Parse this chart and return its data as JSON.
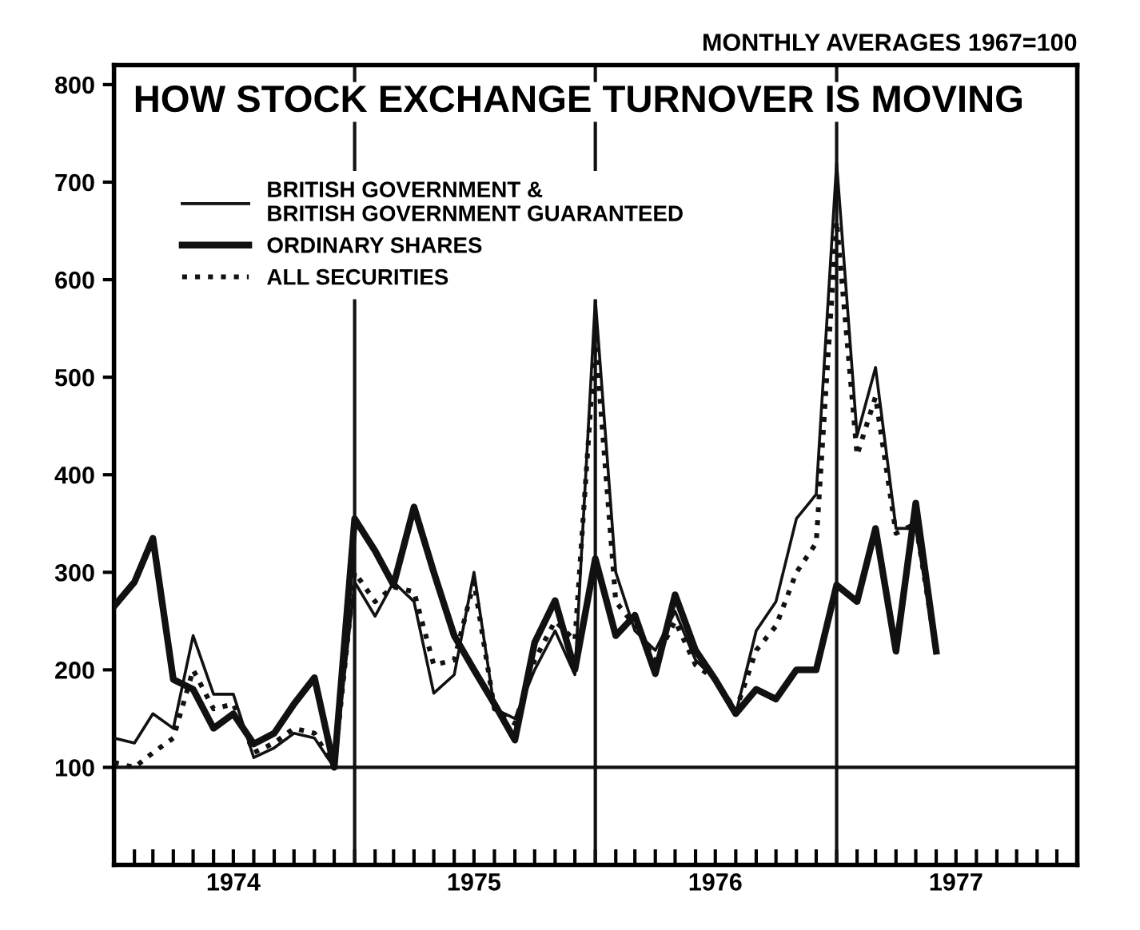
{
  "chart_data": {
    "type": "line",
    "title": "HOW STOCK EXCHANGE TURNOVER IS MOVING",
    "annotations": [
      "MONTHLY AVERAGES 1967=100"
    ],
    "x": [
      "1974-01",
      "1974-02",
      "1974-03",
      "1974-04",
      "1974-05",
      "1974-06",
      "1974-07",
      "1974-08",
      "1974-09",
      "1974-10",
      "1974-11",
      "1974-12",
      "1975-01",
      "1975-02",
      "1975-03",
      "1975-04",
      "1975-05",
      "1975-06",
      "1975-07",
      "1975-08",
      "1975-09",
      "1975-10",
      "1975-11",
      "1975-12",
      "1976-01",
      "1976-02",
      "1976-03",
      "1976-04",
      "1976-05",
      "1976-06",
      "1976-07",
      "1976-08",
      "1976-09",
      "1976-10",
      "1976-11",
      "1976-12",
      "1977-01",
      "1977-02",
      "1977-03",
      "1977-04",
      "1977-05",
      "1977-06"
    ],
    "series": [
      {
        "name": "BRITISH GOVERNMENT &\nBRITISH GOVERNMENT GUARANTEED",
        "color": "#111111",
        "line_style": "solid",
        "values": [
          130,
          125,
          155,
          140,
          235,
          175,
          175,
          110,
          120,
          135,
          130,
          100,
          290,
          255,
          290,
          270,
          176,
          195,
          300,
          160,
          150,
          200,
          240,
          195,
          580,
          300,
          240,
          220,
          260,
          210,
          190,
          155,
          240,
          270,
          355,
          380,
          720,
          440,
          510,
          345,
          345,
          220
        ]
      },
      {
        "name": "ORDINARY SHARES",
        "color": "#111111",
        "line_style": "solid",
        "values": [
          265,
          290,
          335,
          190,
          180,
          140,
          155,
          124,
          135,
          165,
          192,
          100,
          355,
          322,
          287,
          367,
          300,
          235,
          200,
          165,
          128,
          228,
          271,
          200,
          314,
          235,
          256,
          196,
          277,
          220,
          190,
          155,
          180,
          170,
          200,
          200,
          287,
          270,
          345,
          219,
          371,
          219
        ]
      },
      {
        "name": "ALL SECURITIES",
        "color": "#111111",
        "line_style": "dotted",
        "values": [
          105,
          100,
          115,
          130,
          200,
          160,
          165,
          115,
          125,
          140,
          135,
          100,
          300,
          270,
          285,
          280,
          205,
          210,
          290,
          160,
          145,
          210,
          250,
          230,
          540,
          270,
          245,
          210,
          250,
          205,
          190,
          158,
          220,
          245,
          300,
          330,
          660,
          420,
          480,
          340,
          350,
          219
        ]
      }
    ],
    "xlim": [
      "1974-01",
      "1978-01"
    ],
    "xticks": [
      {
        "value": "1974-01",
        "label": null
      },
      {
        "value": "1974-02",
        "label": null
      },
      {
        "value": "1974-03",
        "label": null
      },
      {
        "value": "1974-04",
        "label": null
      },
      {
        "value": "1974-05",
        "label": null
      },
      {
        "value": "1974-06",
        "label": null
      },
      {
        "value": "1974-07",
        "label": "1974"
      },
      {
        "value": "1974-08",
        "label": null
      },
      {
        "value": "1974-09",
        "label": null
      },
      {
        "value": "1974-10",
        "label": null
      },
      {
        "value": "1974-11",
        "label": null
      },
      {
        "value": "1974-12",
        "label": null
      },
      {
        "value": "1975-01",
        "label": null
      },
      {
        "value": "1975-02",
        "label": null
      },
      {
        "value": "1975-03",
        "label": null
      },
      {
        "value": "1975-04",
        "label": null
      },
      {
        "value": "1975-05",
        "label": null
      },
      {
        "value": "1975-06",
        "label": null
      },
      {
        "value": "1975-07",
        "label": "1975"
      },
      {
        "value": "1975-08",
        "label": null
      },
      {
        "value": "1975-09",
        "label": null
      },
      {
        "value": "1975-10",
        "label": null
      },
      {
        "value": "1975-11",
        "label": null
      },
      {
        "value": "1975-12",
        "label": null
      },
      {
        "value": "1976-01",
        "label": null
      },
      {
        "value": "1976-02",
        "label": null
      },
      {
        "value": "1976-03",
        "label": null
      },
      {
        "value": "1976-04",
        "label": null
      },
      {
        "value": "1976-05",
        "label": null
      },
      {
        "value": "1976-06",
        "label": null
      },
      {
        "value": "1976-07",
        "label": "1976"
      },
      {
        "value": "1976-08",
        "label": null
      },
      {
        "value": "1976-09",
        "label": null
      },
      {
        "value": "1976-10",
        "label": null
      },
      {
        "value": "1976-11",
        "label": null
      },
      {
        "value": "1976-12",
        "label": null
      },
      {
        "value": "1977-01",
        "label": null
      },
      {
        "value": "1977-02",
        "label": null
      },
      {
        "value": "1977-03",
        "label": null
      },
      {
        "value": "1977-04",
        "label": null
      },
      {
        "value": "1977-05",
        "label": null
      },
      {
        "value": "1977-06",
        "label": null
      },
      {
        "value": "1977-07",
        "label": "1977"
      },
      {
        "value": "1977-08",
        "label": null
      },
      {
        "value": "1977-09",
        "label": null
      },
      {
        "value": "1977-10",
        "label": null
      },
      {
        "value": "1977-11",
        "label": null
      },
      {
        "value": "1977-12",
        "label": null
      }
    ],
    "ylim": [
      0,
      820
    ],
    "yticks": [
      100,
      200,
      300,
      400,
      500,
      600,
      700,
      800
    ],
    "ref_lines": [
      {
        "axis": "y",
        "value": 100,
        "label": null,
        "color": "#111111"
      },
      {
        "axis": "x",
        "value": "1975-01",
        "label": null,
        "color": "#111111"
      },
      {
        "axis": "x",
        "value": "1976-01",
        "label": null,
        "color": "#111111"
      },
      {
        "axis": "x",
        "value": "1977-01",
        "label": null,
        "color": "#111111"
      }
    ],
    "grid": false,
    "legend": "top left",
    "marker": "none"
  }
}
